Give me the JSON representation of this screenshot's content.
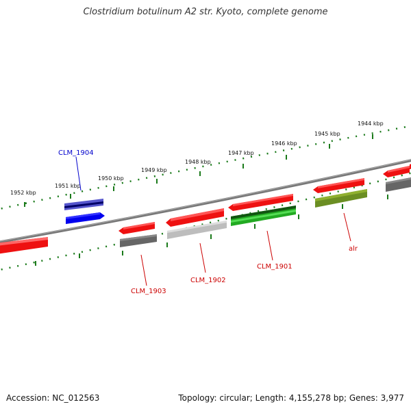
{
  "title": "Clostridium botulinum A2 str. Kyoto, complete genome",
  "footer": {
    "accession": "Accession: NC_012563",
    "topology": "Topology: circular; Length: 4,155,278 bp; Genes: 3,977"
  },
  "colors": {
    "backbone": "#777777",
    "ruler": "#1a7a1a",
    "red": "#ee1111",
    "grey": "#666666",
    "lightgrey": "#bdbdbd",
    "green": "#22aa22",
    "olive": "#6b8e23",
    "blue": "#0000ee",
    "label_red": "#cc0000",
    "label_blue": "#0000cc"
  },
  "kbp_ticks": [
    {
      "label": "1952 kbp"
    },
    {
      "label": "1951 kbp"
    },
    {
      "label": "1950 kbp"
    },
    {
      "label": "1949 kbp"
    },
    {
      "label": "1948 kbp"
    },
    {
      "label": "1947 kbp"
    },
    {
      "label": "1946 kbp"
    },
    {
      "label": "1945 kbp"
    },
    {
      "label": "1944 kbp"
    }
  ],
  "gene_labels": [
    {
      "name": "CLM_1904",
      "color": "blue"
    },
    {
      "name": "CLM_1903",
      "color": "label_red"
    },
    {
      "name": "CLM_1902",
      "color": "label_red"
    },
    {
      "name": "CLM_1901",
      "color": "label_red"
    },
    {
      "name": "alr",
      "color": "label_red"
    }
  ]
}
